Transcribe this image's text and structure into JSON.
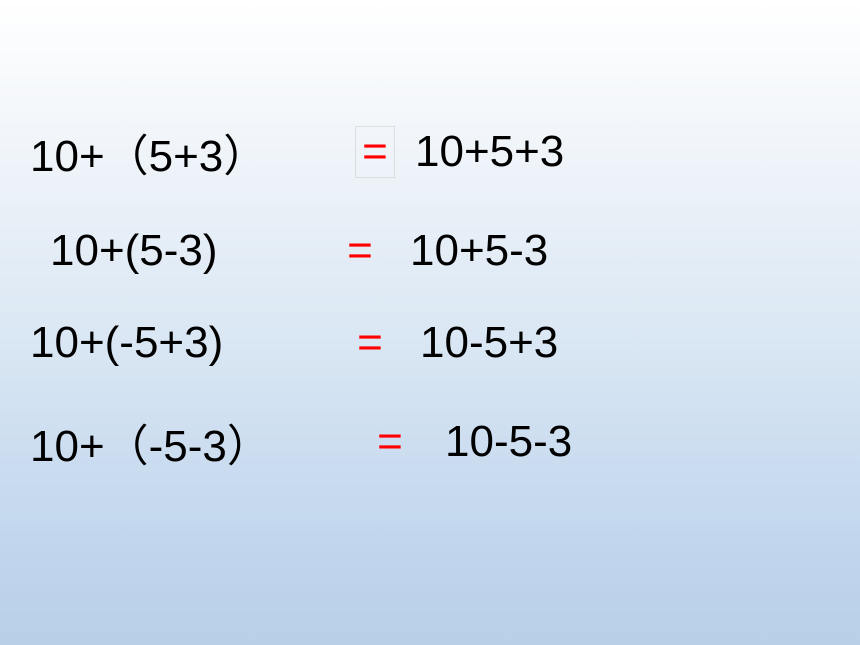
{
  "slide": {
    "background_gradient": {
      "top": "#ffffff",
      "upper_mid": "#f2f6fa",
      "mid": "#dce8f4",
      "lower_mid": "#c4d8ee",
      "bottom": "#b8cfe8"
    },
    "font_size": 44,
    "text_color": "#000000",
    "equals_color": "#ff0000",
    "equations": [
      {
        "lhs": "10+（5+3）",
        "equals": "=",
        "rhs": "10+5+3",
        "equals_boxed": true
      },
      {
        "lhs": "10+(5-3)",
        "equals": "=",
        "rhs": "10+5-3",
        "equals_boxed": false
      },
      {
        "lhs": "10+(-5+3)",
        "equals": "=",
        "rhs": "10-5+3",
        "equals_boxed": false
      },
      {
        "lhs": "10+（-5-3）",
        "equals": "=",
        "rhs": "10-5-3",
        "equals_boxed": false
      }
    ]
  }
}
